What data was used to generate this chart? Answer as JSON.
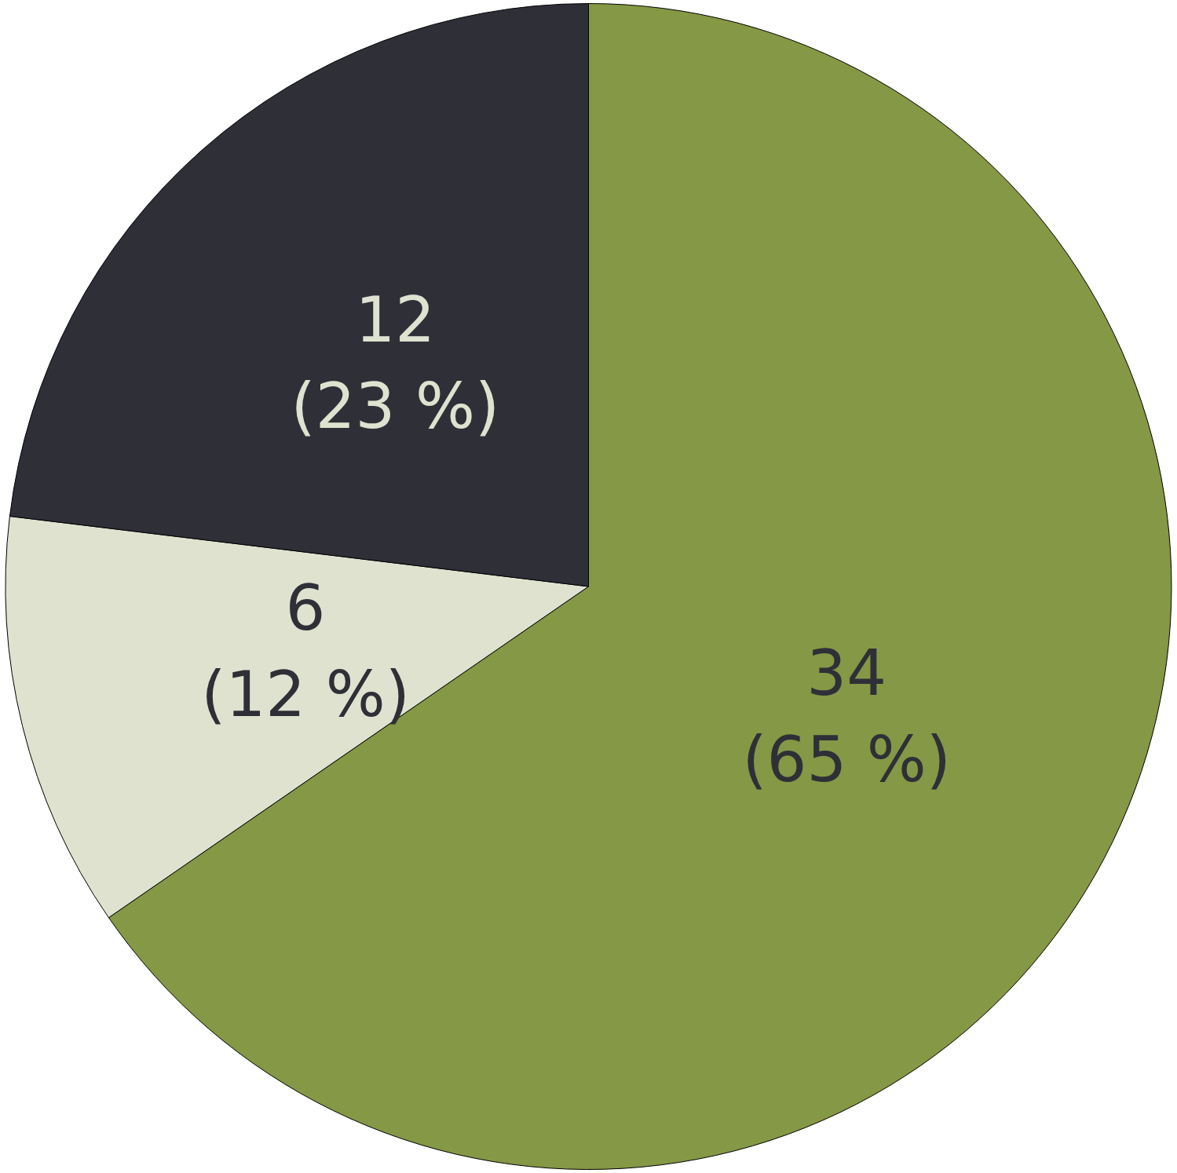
{
  "chart_data": {
    "type": "pie",
    "categories": [
      null,
      null,
      null
    ],
    "values": [
      34,
      6,
      12
    ],
    "colors": [
      "#849845",
      "#dee2cf",
      "#2f2f38"
    ],
    "value_labels": [
      "34\n(65 %)",
      "6\n(12 %)",
      "12\n(23 %)"
    ],
    "legend": false
  }
}
